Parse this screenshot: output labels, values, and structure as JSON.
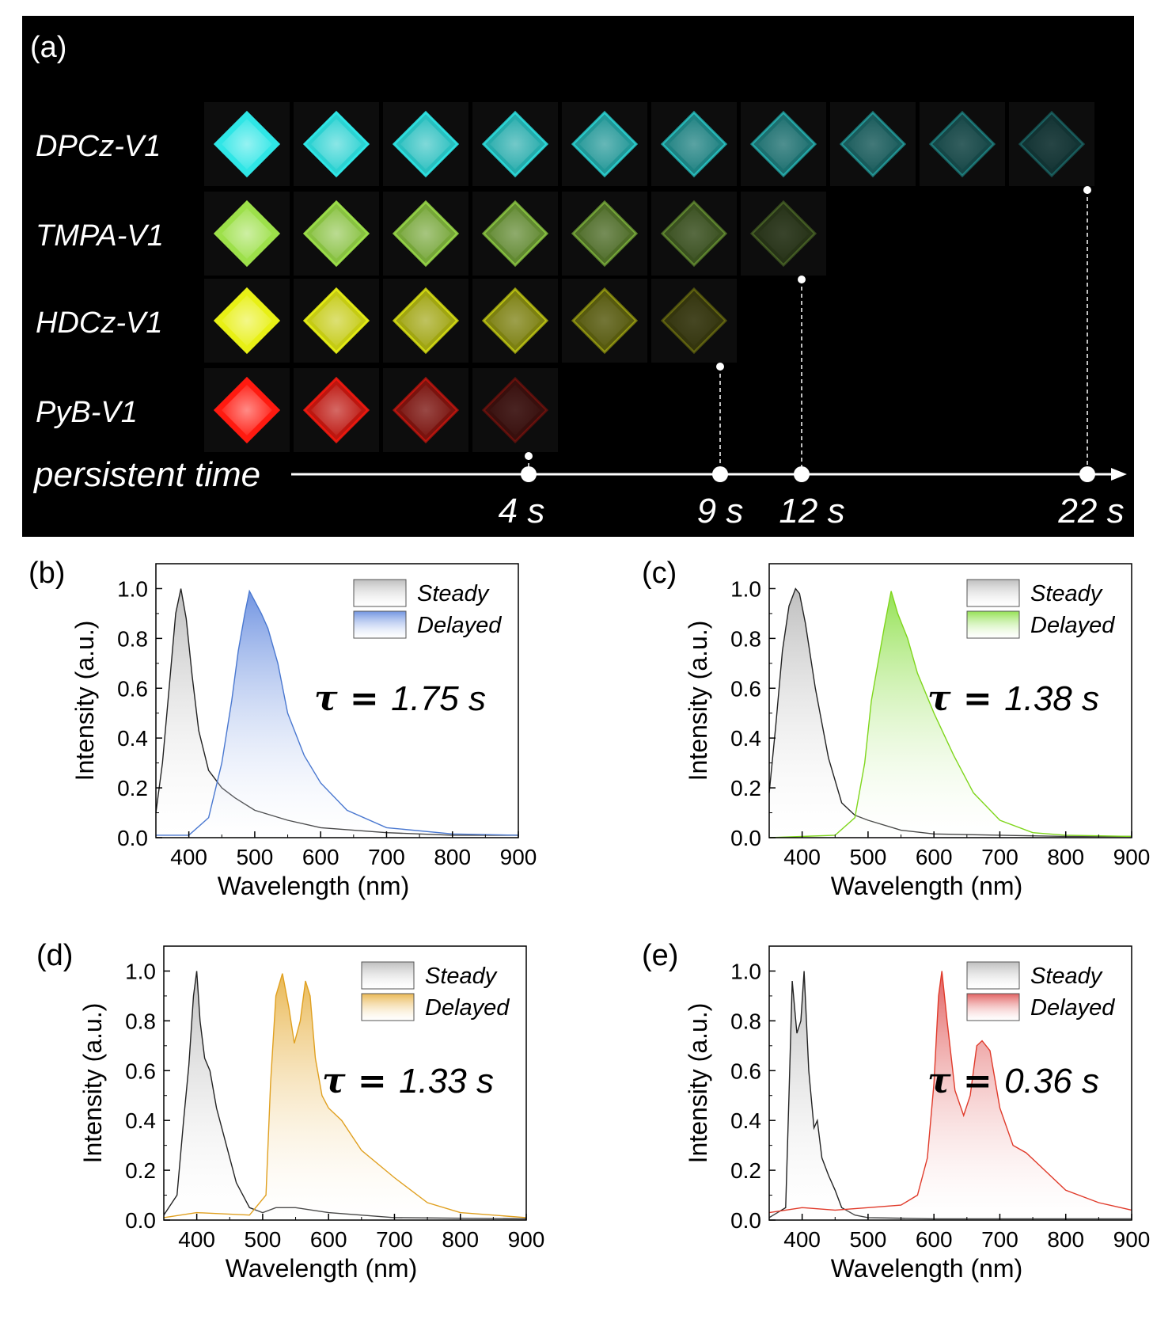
{
  "panel_a": {
    "label": "(a)",
    "rows": [
      {
        "name": "DPCz-V1",
        "color": "#2fe6e6",
        "frames": 10
      },
      {
        "name": "TMPA-V1",
        "color": "#9de04a",
        "frames": 7
      },
      {
        "name": "HDCz-V1",
        "color": "#e8f015",
        "frames": 6
      },
      {
        "name": "PyB-V1",
        "color": "#ff1a10",
        "frames": 4
      }
    ],
    "axis_label": "persistent time",
    "markers": [
      {
        "label": "4 s",
        "row": 3
      },
      {
        "label": "9 s",
        "row": 2
      },
      {
        "label": "12 s",
        "row": 1
      },
      {
        "label": "22 s",
        "row": 0
      }
    ]
  },
  "chart_data": [
    {
      "panel": "(b)",
      "type": "line",
      "xlabel": "Wavelength (nm)",
      "ylabel": "Intensity (a.u.)",
      "xlim": [
        350,
        900
      ],
      "ylim": [
        0,
        1.1
      ],
      "xticks": [
        400,
        500,
        600,
        700,
        800,
        900
      ],
      "yticks": [
        "0.0",
        "0.2",
        "0.4",
        "0.6",
        "0.8",
        "1.0"
      ],
      "annotation": {
        "symbol": "τ = ",
        "value": "1.75 s"
      },
      "series": [
        {
          "name": "Steady",
          "color": "#222222",
          "fill": "#bbbbbb",
          "x": [
            350,
            360,
            370,
            380,
            388,
            396,
            405,
            415,
            430,
            450,
            470,
            500,
            550,
            600,
            700,
            800,
            900
          ],
          "y": [
            0.1,
            0.3,
            0.6,
            0.9,
            1.0,
            0.88,
            0.65,
            0.43,
            0.27,
            0.2,
            0.16,
            0.11,
            0.07,
            0.04,
            0.02,
            0.01,
            0.01
          ]
        },
        {
          "name": "Delayed",
          "color": "#4a78d0",
          "fill": "#6a8fe0",
          "x": [
            350,
            400,
            430,
            450,
            465,
            475,
            485,
            492,
            500,
            510,
            520,
            535,
            550,
            575,
            600,
            640,
            700,
            800,
            900
          ],
          "y": [
            0.01,
            0.01,
            0.08,
            0.3,
            0.55,
            0.75,
            0.9,
            0.99,
            0.95,
            0.9,
            0.84,
            0.7,
            0.5,
            0.33,
            0.22,
            0.11,
            0.04,
            0.015,
            0.01
          ]
        }
      ]
    },
    {
      "panel": "(c)",
      "type": "line",
      "xlabel": "Wavelength (nm)",
      "ylabel": "Intensity (a.u.)",
      "xlim": [
        350,
        900
      ],
      "ylim": [
        0,
        1.1
      ],
      "xticks": [
        400,
        500,
        600,
        700,
        800,
        900
      ],
      "yticks": [
        "0.0",
        "0.2",
        "0.4",
        "0.6",
        "0.8",
        "1.0"
      ],
      "annotation": {
        "symbol": "τ = ",
        "value": "1.38 s"
      },
      "series": [
        {
          "name": "Steady",
          "color": "#222222",
          "fill": "#bbbbbb",
          "x": [
            350,
            360,
            370,
            380,
            390,
            396,
            405,
            420,
            440,
            460,
            480,
            500,
            550,
            600,
            700,
            800,
            900
          ],
          "y": [
            0.18,
            0.45,
            0.75,
            0.93,
            1.0,
            0.98,
            0.86,
            0.6,
            0.32,
            0.14,
            0.09,
            0.07,
            0.03,
            0.015,
            0.01,
            0.005,
            0.005
          ]
        },
        {
          "name": "Delayed",
          "color": "#7fd61c",
          "fill": "#8ee04a",
          "x": [
            350,
            450,
            480,
            495,
            505,
            515,
            525,
            535,
            545,
            560,
            575,
            600,
            630,
            660,
            700,
            750,
            800,
            900
          ],
          "y": [
            0.0,
            0.01,
            0.08,
            0.3,
            0.55,
            0.7,
            0.85,
            0.99,
            0.9,
            0.8,
            0.66,
            0.5,
            0.33,
            0.18,
            0.07,
            0.02,
            0.01,
            0.005
          ]
        }
      ]
    },
    {
      "panel": "(d)",
      "type": "line",
      "xlabel": "Wavelength (nm)",
      "ylabel": "Intensity (a.u.)",
      "xlim": [
        350,
        900
      ],
      "ylim": [
        0,
        1.1
      ],
      "xticks": [
        400,
        500,
        600,
        700,
        800,
        900
      ],
      "yticks": [
        "0.0",
        "0.2",
        "0.4",
        "0.6",
        "0.8",
        "1.0"
      ],
      "annotation": {
        "symbol": "τ = ",
        "value": "1.33 s"
      },
      "series": [
        {
          "name": "Steady",
          "color": "#222222",
          "fill": "#bbbbbb",
          "x": [
            350,
            370,
            380,
            388,
            395,
            400,
            405,
            412,
            420,
            430,
            445,
            460,
            480,
            500,
            520,
            550,
            600,
            700,
            900
          ],
          "y": [
            0.02,
            0.1,
            0.4,
            0.62,
            0.9,
            1.0,
            0.8,
            0.65,
            0.6,
            0.45,
            0.3,
            0.15,
            0.05,
            0.03,
            0.05,
            0.05,
            0.03,
            0.01,
            0.005
          ]
        },
        {
          "name": "Delayed",
          "color": "#e0a020",
          "fill": "#e8b44a",
          "x": [
            350,
            400,
            480,
            505,
            512,
            520,
            530,
            540,
            548,
            557,
            565,
            572,
            580,
            590,
            600,
            620,
            650,
            700,
            750,
            800,
            900
          ],
          "y": [
            0.01,
            0.03,
            0.02,
            0.1,
            0.55,
            0.9,
            0.99,
            0.85,
            0.71,
            0.8,
            0.96,
            0.9,
            0.65,
            0.5,
            0.45,
            0.4,
            0.28,
            0.17,
            0.07,
            0.03,
            0.01
          ]
        }
      ]
    },
    {
      "panel": "(e)",
      "type": "line",
      "xlabel": "Wavelength (nm)",
      "ylabel": "Intensity (a.u.)",
      "xlim": [
        350,
        900
      ],
      "ylim": [
        0,
        1.1
      ],
      "xticks": [
        400,
        500,
        600,
        700,
        800,
        900
      ],
      "yticks": [
        "0.0",
        "0.2",
        "0.4",
        "0.6",
        "0.8",
        "1.0"
      ],
      "annotation": {
        "symbol": "τ = ",
        "value": "0.36 s"
      },
      "series": [
        {
          "name": "Steady",
          "color": "#222222",
          "fill": "#bbbbbb",
          "x": [
            350,
            375,
            380,
            385,
            392,
            398,
            403,
            410,
            418,
            423,
            430,
            440,
            450,
            460,
            480,
            500,
            600,
            900
          ],
          "y": [
            0.01,
            0.05,
            0.5,
            0.96,
            0.75,
            0.8,
            1.0,
            0.6,
            0.37,
            0.4,
            0.25,
            0.18,
            0.12,
            0.05,
            0.02,
            0.01,
            0.005,
            0.005
          ]
        },
        {
          "name": "Delayed",
          "color": "#e03a2a",
          "fill": "#e05858",
          "x": [
            350,
            400,
            450,
            500,
            550,
            575,
            590,
            600,
            607,
            612,
            620,
            632,
            645,
            655,
            665,
            673,
            685,
            700,
            720,
            740,
            760,
            800,
            850,
            900
          ],
          "y": [
            0.03,
            0.05,
            0.04,
            0.05,
            0.06,
            0.1,
            0.25,
            0.55,
            0.9,
            1.0,
            0.8,
            0.52,
            0.42,
            0.5,
            0.7,
            0.72,
            0.68,
            0.45,
            0.3,
            0.27,
            0.22,
            0.12,
            0.07,
            0.04
          ]
        }
      ]
    }
  ]
}
